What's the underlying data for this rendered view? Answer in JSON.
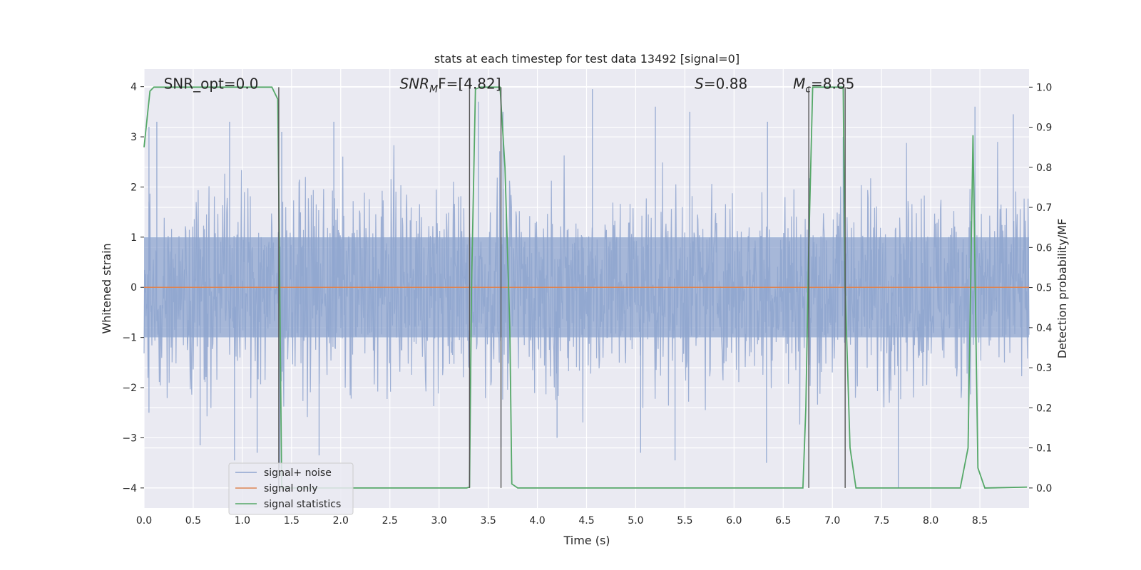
{
  "chart_data": {
    "type": "line",
    "title": "stats at each timestep for test data 13492 [signal=0]",
    "xlabel": "Time (s)",
    "ylabel": "Whitened strain",
    "y2label": "Detection probability/MF",
    "xlim": [
      0.0,
      9.0
    ],
    "ylim": [
      -4.4,
      4.35
    ],
    "y2lim": [
      -0.05,
      1.045
    ],
    "xticks": [
      0.0,
      0.5,
      1.0,
      1.5,
      2.0,
      2.5,
      3.0,
      3.5,
      4.0,
      4.5,
      5.0,
      5.5,
      6.0,
      6.5,
      7.0,
      7.5,
      8.0,
      8.5
    ],
    "xtick_labels": [
      "0.0",
      "0.5",
      "1.0",
      "1.5",
      "2.0",
      "2.5",
      "3.0",
      "3.5",
      "4.0",
      "4.5",
      "5.0",
      "5.5",
      "6.0",
      "6.5",
      "7.0",
      "7.5",
      "8.0",
      "8.5"
    ],
    "yticks": [
      -4,
      -3,
      -2,
      -1,
      0,
      1,
      2,
      3,
      4
    ],
    "ytick_labels": [
      "−4",
      "−3",
      "−2",
      "−1",
      "0",
      "1",
      "2",
      "3",
      "4"
    ],
    "y2ticks": [
      0.0,
      0.1,
      0.2,
      0.3,
      0.4,
      0.5,
      0.6,
      0.7,
      0.8,
      0.9,
      1.0
    ],
    "y2tick_labels": [
      "0.0",
      "0.1",
      "0.2",
      "0.3",
      "0.4",
      "0.5",
      "0.6",
      "0.7",
      "0.8",
      "0.9",
      "1.0"
    ],
    "grid": true,
    "legend_position": "bottom-left",
    "annotations": [
      {
        "text": "SNR_opt=0.0",
        "x": 0.2,
        "y": 4.0
      },
      {
        "text_main": "SNR",
        "text_sub": "M",
        "text_rest": "F=[4.82]",
        "x": 2.6,
        "y": 4.0
      },
      {
        "text_main": "S",
        "text_rest": "=0.88",
        "x": 5.6,
        "y": 4.0
      },
      {
        "text_main": "M",
        "text_sub": "c",
        "text_rest": "=8.85",
        "x": 6.6,
        "y": 4.0
      }
    ],
    "series": [
      {
        "name": "signal+ noise",
        "color": "#8fa5cf",
        "kind": "noise",
        "amplitude_typical": 1.0,
        "peaks_positive": [
          [
            0.05,
            3.2
          ],
          [
            0.13,
            3.3
          ],
          [
            0.87,
            3.3
          ],
          [
            1.4,
            3.1
          ],
          [
            1.93,
            3.3
          ],
          [
            3.4,
            3.7
          ],
          [
            3.65,
            3.5
          ],
          [
            4.56,
            3.95
          ],
          [
            5.2,
            3.6
          ],
          [
            5.55,
            3.5
          ],
          [
            6.34,
            3.3
          ],
          [
            7.11,
            3.0
          ],
          [
            8.45,
            3.6
          ],
          [
            8.84,
            3.45
          ]
        ],
        "peaks_negative": [
          [
            0.05,
            -2.5
          ],
          [
            0.57,
            -3.15
          ],
          [
            0.92,
            -3.45
          ],
          [
            1.15,
            -3.3
          ],
          [
            1.38,
            -3.6
          ],
          [
            1.78,
            -3.35
          ],
          [
            3.63,
            -3.2
          ],
          [
            4.2,
            -3.0
          ],
          [
            5.05,
            -3.3
          ],
          [
            5.4,
            -3.45
          ],
          [
            6.33,
            -3.5
          ],
          [
            7.67,
            -4.0
          ]
        ]
      },
      {
        "name": "signal only",
        "color": "#dd8452",
        "x": [
          0.0,
          9.0
        ],
        "y": [
          0.0,
          0.0
        ]
      },
      {
        "name": "signal statistics",
        "color": "#55a868",
        "axis": "right",
        "x": [
          0.0,
          0.06,
          0.1,
          1.3,
          1.36,
          1.38,
          1.4,
          1.42,
          1.45,
          1.5,
          3.28,
          3.31,
          3.33,
          3.37,
          3.42,
          3.62,
          3.67,
          3.72,
          3.74,
          3.8,
          6.7,
          6.73,
          6.76,
          6.8,
          7.11,
          7.13,
          7.18,
          7.24,
          8.3,
          8.38,
          8.43,
          8.48,
          8.55,
          8.98
        ],
        "y": [
          0.85,
          0.99,
          1.0,
          1.0,
          0.97,
          0.5,
          0.0,
          0.0,
          0.0,
          0.0,
          0.0,
          0.002,
          0.5,
          0.995,
          1.0,
          1.0,
          0.8,
          0.4,
          0.01,
          0.0,
          0.0,
          0.2,
          0.6,
          1.0,
          1.0,
          0.5,
          0.1,
          0.0,
          0.0,
          0.1,
          0.88,
          0.05,
          0.0,
          0.002
        ]
      }
    ],
    "vlines": [
      1.37,
      3.31,
      3.63,
      6.76,
      7.13
    ]
  }
}
